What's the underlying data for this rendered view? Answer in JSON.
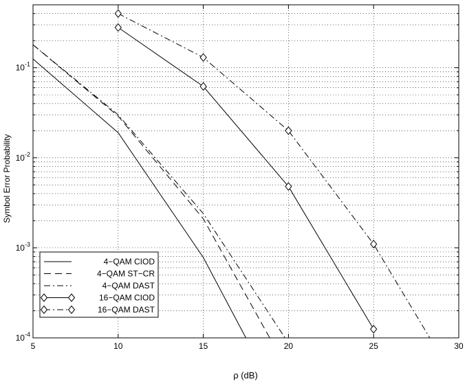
{
  "chart_data": {
    "type": "line",
    "title": "",
    "xlabel": "ρ (dB)",
    "ylabel": "Symbol Error Probability",
    "xlim": [
      5,
      30
    ],
    "ylim": [
      0.0001,
      0.5
    ],
    "yscale": "log",
    "grid": true,
    "legend_position": "bottom-left",
    "x_ticks": [
      5,
      10,
      15,
      20,
      25,
      30
    ],
    "y_ticks": [
      {
        "value": 0.1,
        "base": "10",
        "exp": "-1"
      },
      {
        "value": 0.01,
        "base": "10",
        "exp": "-2"
      },
      {
        "value": 0.001,
        "base": "10",
        "exp": "-3"
      },
      {
        "value": 0.0001,
        "base": "10",
        "exp": "-4"
      }
    ],
    "series": [
      {
        "name": "4−QAM CIOD",
        "dash": "",
        "marker": "none",
        "x": [
          5,
          10,
          15,
          17.5
        ],
        "y": [
          0.125,
          0.019,
          0.00078,
          0.0001
        ]
      },
      {
        "name": "4−QAM ST−CR",
        "dash": "10,6",
        "marker": "none",
        "x": [
          5,
          10,
          15,
          18.9
        ],
        "y": [
          0.18,
          0.029,
          0.0021,
          0.0001
        ]
      },
      {
        "name": "4−QAM DAST",
        "dash": "9,4,2,4",
        "marker": "none",
        "x": [
          5,
          10,
          15,
          19.8
        ],
        "y": [
          0.18,
          0.03,
          0.0024,
          0.0001
        ]
      },
      {
        "name": "16−QAM CIOD",
        "dash": "",
        "marker": "diamond",
        "x": [
          10,
          15,
          20,
          25
        ],
        "y": [
          0.28,
          0.062,
          0.0048,
          0.000125
        ]
      },
      {
        "name": "16−QAM DAST",
        "dash": "9,4,2,4",
        "marker": "diamond",
        "x": [
          10,
          15,
          20,
          25,
          28.3
        ],
        "y": [
          0.4,
          0.13,
          0.02,
          0.0011,
          0.0001
        ]
      }
    ]
  }
}
